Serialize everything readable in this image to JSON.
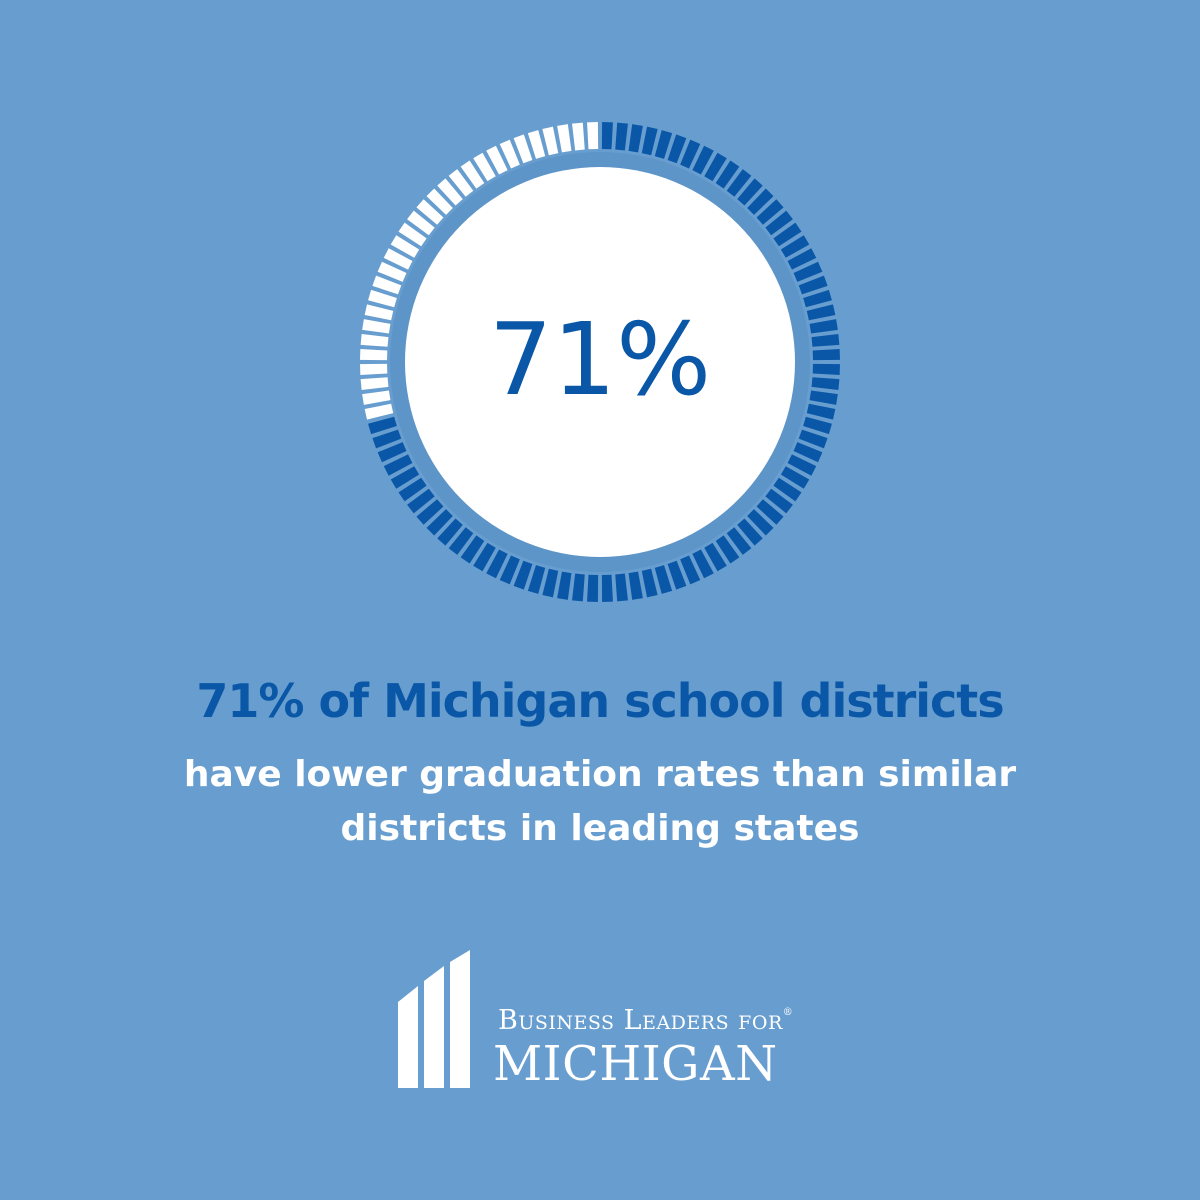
{
  "chart_data": {
    "type": "gauge",
    "value": 71,
    "max": 100,
    "center_label": "71%",
    "filled_color": "#0a57a7",
    "empty_color": "#ffffff"
  },
  "headline": "71% of Michigan school districts",
  "subtext": {
    "line1": "have lower graduation rates than similar",
    "line2": "districts in leading states"
  },
  "logo": {
    "line1": "Business Leaders for",
    "registered": "®",
    "line2": "MICHIGAN"
  },
  "colors": {
    "background": "#689ecf",
    "accent": "#0a57a7",
    "white": "#ffffff"
  }
}
